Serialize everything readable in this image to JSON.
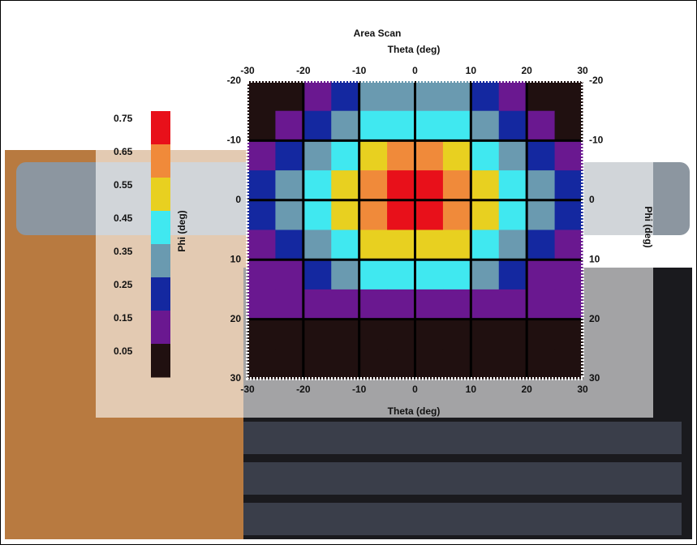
{
  "chart_data": {
    "type": "heatmap",
    "title": "Area Scan",
    "xlabel": "Theta (deg)",
    "ylabel": "Phi (deg)",
    "x": [
      -27.5,
      -22.5,
      -17.5,
      -12.5,
      -7.5,
      -2.5,
      2.5,
      7.5,
      12.5,
      17.5,
      22.5,
      27.5
    ],
    "y": [
      -17.5,
      -12.5,
      -7.5,
      -2.5,
      2.5,
      7.5,
      12.5,
      17.5,
      22.5,
      27.5
    ],
    "z": [
      [
        0.08,
        0.1,
        0.2,
        0.28,
        0.35,
        0.38,
        0.38,
        0.35,
        0.28,
        0.2,
        0.1,
        0.08
      ],
      [
        0.1,
        0.2,
        0.3,
        0.38,
        0.47,
        0.5,
        0.5,
        0.47,
        0.38,
        0.3,
        0.2,
        0.1
      ],
      [
        0.2,
        0.3,
        0.38,
        0.48,
        0.58,
        0.65,
        0.65,
        0.58,
        0.48,
        0.38,
        0.3,
        0.2
      ],
      [
        0.28,
        0.36,
        0.46,
        0.58,
        0.7,
        0.78,
        0.78,
        0.7,
        0.58,
        0.46,
        0.36,
        0.28
      ],
      [
        0.26,
        0.35,
        0.45,
        0.57,
        0.68,
        0.76,
        0.76,
        0.68,
        0.57,
        0.45,
        0.35,
        0.26
      ],
      [
        0.22,
        0.3,
        0.38,
        0.47,
        0.56,
        0.6,
        0.6,
        0.56,
        0.47,
        0.38,
        0.3,
        0.22
      ],
      [
        0.18,
        0.2,
        0.26,
        0.36,
        0.45,
        0.48,
        0.48,
        0.45,
        0.36,
        0.26,
        0.2,
        0.18
      ],
      [
        0.16,
        0.16,
        0.18,
        0.18,
        0.2,
        0.2,
        0.2,
        0.2,
        0.18,
        0.16,
        0.16,
        0.16
      ],
      [
        0.06,
        0.06,
        0.06,
        0.06,
        0.06,
        0.06,
        0.06,
        0.06,
        0.06,
        0.06,
        0.06,
        0.06
      ],
      [
        0.05,
        0.05,
        0.05,
        0.05,
        0.05,
        0.05,
        0.05,
        0.05,
        0.05,
        0.05,
        0.05,
        0.05
      ]
    ],
    "xlim": [
      -30,
      30
    ],
    "xticks": [
      -30,
      -20,
      -10,
      0,
      10,
      20,
      30
    ],
    "ylim": [
      -20,
      30
    ],
    "yticks": [
      -20,
      -10,
      0,
      10,
      20,
      30
    ],
    "grid": true,
    "colorbar": {
      "labels": [
        0.75,
        0.65,
        0.55,
        0.45,
        0.35,
        0.25,
        0.15,
        0.05
      ],
      "colors": [
        "#e8101a",
        "#f08a3a",
        "#e8d020",
        "#40e8f0",
        "#6a9ab0",
        "#1428a0",
        "#6a1890",
        "#201010"
      ]
    }
  }
}
